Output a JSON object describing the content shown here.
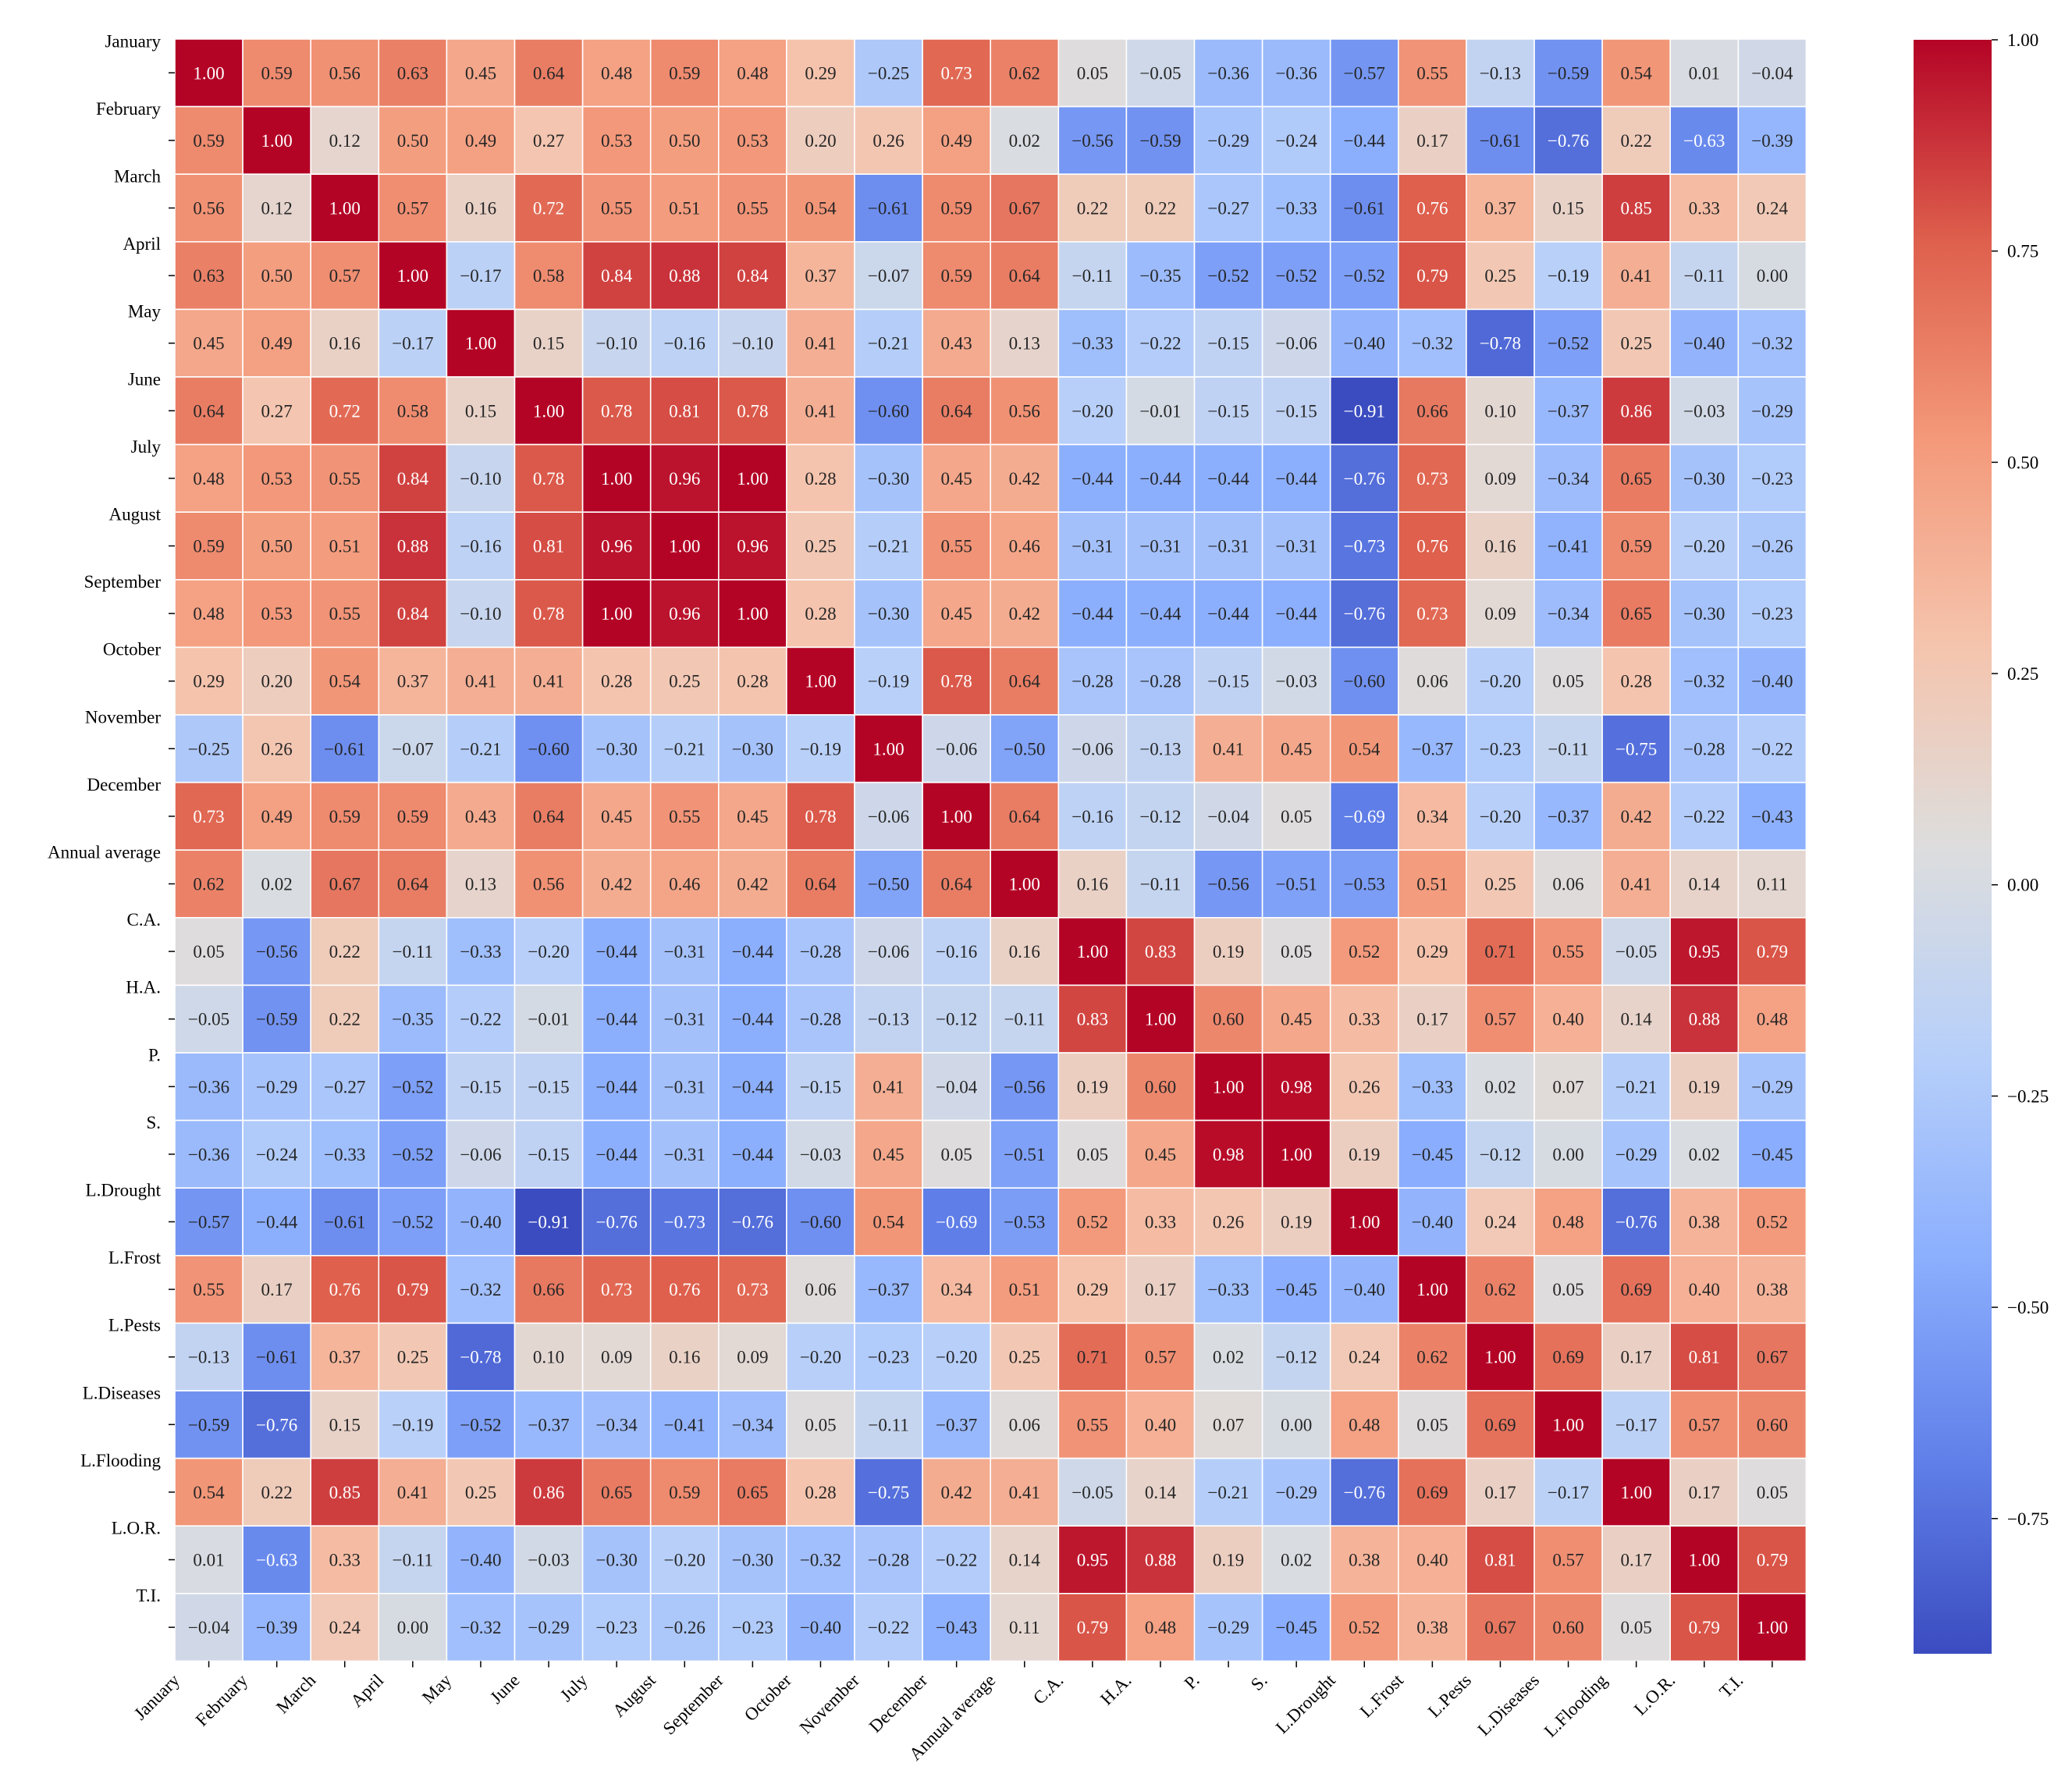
{
  "chart_data": {
    "type": "heatmap",
    "title": "",
    "xlabel": "",
    "ylabel": "",
    "colormap": "coolwarm",
    "vmin": -0.91,
    "vmax": 1.0,
    "value_format": "2 decimals",
    "labels": [
      "January",
      "February",
      "March",
      "April",
      "May",
      "June",
      "July",
      "August",
      "September",
      "October",
      "November",
      "December",
      "Annual average",
      "C.A.",
      "H.A.",
      "P.",
      "S.",
      "L.Drought",
      "L.Frost",
      "L.Pests",
      "L.Diseases",
      "L.Flooding",
      "L.O.R.",
      "T.I."
    ],
    "matrix": [
      [
        1.0,
        0.59,
        0.56,
        0.63,
        0.45,
        0.64,
        0.48,
        0.59,
        0.48,
        0.29,
        -0.25,
        0.73,
        0.62,
        0.05,
        -0.05,
        -0.36,
        -0.36,
        -0.57,
        0.55,
        -0.13,
        -0.59,
        0.54,
        0.01,
        -0.04
      ],
      [
        0.59,
        1.0,
        0.12,
        0.5,
        0.49,
        0.27,
        0.53,
        0.5,
        0.53,
        0.2,
        0.26,
        0.49,
        0.02,
        -0.56,
        -0.59,
        -0.29,
        -0.24,
        -0.44,
        0.17,
        -0.61,
        -0.76,
        0.22,
        -0.63,
        -0.39
      ],
      [
        0.56,
        0.12,
        1.0,
        0.57,
        0.16,
        0.72,
        0.55,
        0.51,
        0.55,
        0.54,
        -0.61,
        0.59,
        0.67,
        0.22,
        0.22,
        -0.27,
        -0.33,
        -0.61,
        0.76,
        0.37,
        0.15,
        0.85,
        0.33,
        0.24
      ],
      [
        0.63,
        0.5,
        0.57,
        1.0,
        -0.17,
        0.58,
        0.84,
        0.88,
        0.84,
        0.37,
        -0.07,
        0.59,
        0.64,
        -0.11,
        -0.35,
        -0.52,
        -0.52,
        -0.52,
        0.79,
        0.25,
        -0.19,
        0.41,
        -0.11,
        0.0
      ],
      [
        0.45,
        0.49,
        0.16,
        -0.17,
        1.0,
        0.15,
        -0.1,
        -0.16,
        -0.1,
        0.41,
        -0.21,
        0.43,
        0.13,
        -0.33,
        -0.22,
        -0.15,
        -0.06,
        -0.4,
        -0.32,
        -0.78,
        -0.52,
        0.25,
        -0.4,
        -0.32
      ],
      [
        0.64,
        0.27,
        0.72,
        0.58,
        0.15,
        1.0,
        0.78,
        0.81,
        0.78,
        0.41,
        -0.6,
        0.64,
        0.56,
        -0.2,
        -0.01,
        -0.15,
        -0.15,
        -0.91,
        0.66,
        0.1,
        -0.37,
        0.86,
        -0.03,
        -0.29
      ],
      [
        0.48,
        0.53,
        0.55,
        0.84,
        -0.1,
        0.78,
        1.0,
        0.96,
        1.0,
        0.28,
        -0.3,
        0.45,
        0.42,
        -0.44,
        -0.44,
        -0.44,
        -0.44,
        -0.76,
        0.73,
        0.09,
        -0.34,
        0.65,
        -0.3,
        -0.23
      ],
      [
        0.59,
        0.5,
        0.51,
        0.88,
        -0.16,
        0.81,
        0.96,
        1.0,
        0.96,
        0.25,
        -0.21,
        0.55,
        0.46,
        -0.31,
        -0.31,
        -0.31,
        -0.31,
        -0.73,
        0.76,
        0.16,
        -0.41,
        0.59,
        -0.2,
        -0.26
      ],
      [
        0.48,
        0.53,
        0.55,
        0.84,
        -0.1,
        0.78,
        1.0,
        0.96,
        1.0,
        0.28,
        -0.3,
        0.45,
        0.42,
        -0.44,
        -0.44,
        -0.44,
        -0.44,
        -0.76,
        0.73,
        0.09,
        -0.34,
        0.65,
        -0.3,
        -0.23
      ],
      [
        0.29,
        0.2,
        0.54,
        0.37,
        0.41,
        0.41,
        0.28,
        0.25,
        0.28,
        1.0,
        -0.19,
        0.78,
        0.64,
        -0.28,
        -0.28,
        -0.15,
        -0.03,
        -0.6,
        0.06,
        -0.2,
        0.05,
        0.28,
        -0.32,
        -0.4
      ],
      [
        -0.25,
        0.26,
        -0.61,
        -0.07,
        -0.21,
        -0.6,
        -0.3,
        -0.21,
        -0.3,
        -0.19,
        1.0,
        -0.06,
        -0.5,
        -0.06,
        -0.13,
        0.41,
        0.45,
        0.54,
        -0.37,
        -0.23,
        -0.11,
        -0.75,
        -0.28,
        -0.22
      ],
      [
        0.73,
        0.49,
        0.59,
        0.59,
        0.43,
        0.64,
        0.45,
        0.55,
        0.45,
        0.78,
        -0.06,
        1.0,
        0.64,
        -0.16,
        -0.12,
        -0.04,
        0.05,
        -0.69,
        0.34,
        -0.2,
        -0.37,
        0.42,
        -0.22,
        -0.43
      ],
      [
        0.62,
        0.02,
        0.67,
        0.64,
        0.13,
        0.56,
        0.42,
        0.46,
        0.42,
        0.64,
        -0.5,
        0.64,
        1.0,
        0.16,
        -0.11,
        -0.56,
        -0.51,
        -0.53,
        0.51,
        0.25,
        0.06,
        0.41,
        0.14,
        0.11
      ],
      [
        0.05,
        -0.56,
        0.22,
        -0.11,
        -0.33,
        -0.2,
        -0.44,
        -0.31,
        -0.44,
        -0.28,
        -0.06,
        -0.16,
        0.16,
        1.0,
        0.83,
        0.19,
        0.05,
        0.52,
        0.29,
        0.71,
        0.55,
        -0.05,
        0.95,
        0.79
      ],
      [
        -0.05,
        -0.59,
        0.22,
        -0.35,
        -0.22,
        -0.01,
        -0.44,
        -0.31,
        -0.44,
        -0.28,
        -0.13,
        -0.12,
        -0.11,
        0.83,
        1.0,
        0.6,
        0.45,
        0.33,
        0.17,
        0.57,
        0.4,
        0.14,
        0.88,
        0.48
      ],
      [
        -0.36,
        -0.29,
        -0.27,
        -0.52,
        -0.15,
        -0.15,
        -0.44,
        -0.31,
        -0.44,
        -0.15,
        0.41,
        -0.04,
        -0.56,
        0.19,
        0.6,
        1.0,
        0.98,
        0.26,
        -0.33,
        0.02,
        0.07,
        -0.21,
        0.19,
        -0.29
      ],
      [
        -0.36,
        -0.24,
        -0.33,
        -0.52,
        -0.06,
        -0.15,
        -0.44,
        -0.31,
        -0.44,
        -0.03,
        0.45,
        0.05,
        -0.51,
        0.05,
        0.45,
        0.98,
        1.0,
        0.19,
        -0.45,
        -0.12,
        0.0,
        -0.29,
        0.02,
        -0.45
      ],
      [
        -0.57,
        -0.44,
        -0.61,
        -0.52,
        -0.4,
        -0.91,
        -0.76,
        -0.73,
        -0.76,
        -0.6,
        0.54,
        -0.69,
        -0.53,
        0.52,
        0.33,
        0.26,
        0.19,
        1.0,
        -0.4,
        0.24,
        0.48,
        -0.76,
        0.38,
        0.52
      ],
      [
        0.55,
        0.17,
        0.76,
        0.79,
        -0.32,
        0.66,
        0.73,
        0.76,
        0.73,
        0.06,
        -0.37,
        0.34,
        0.51,
        0.29,
        0.17,
        -0.33,
        -0.45,
        -0.4,
        1.0,
        0.62,
        0.05,
        0.69,
        0.4,
        0.38
      ],
      [
        -0.13,
        -0.61,
        0.37,
        0.25,
        -0.78,
        0.1,
        0.09,
        0.16,
        0.09,
        -0.2,
        -0.23,
        -0.2,
        0.25,
        0.71,
        0.57,
        0.02,
        -0.12,
        0.24,
        0.62,
        1.0,
        0.69,
        0.17,
        0.81,
        0.67
      ],
      [
        -0.59,
        -0.76,
        0.15,
        -0.19,
        -0.52,
        -0.37,
        -0.34,
        -0.41,
        -0.34,
        0.05,
        -0.11,
        -0.37,
        0.06,
        0.55,
        0.4,
        0.07,
        0.0,
        0.48,
        0.05,
        0.69,
        1.0,
        -0.17,
        0.57,
        0.6
      ],
      [
        0.54,
        0.22,
        0.85,
        0.41,
        0.25,
        0.86,
        0.65,
        0.59,
        0.65,
        0.28,
        -0.75,
        0.42,
        0.41,
        -0.05,
        0.14,
        -0.21,
        -0.29,
        -0.76,
        0.69,
        0.17,
        -0.17,
        1.0,
        0.17,
        0.05
      ],
      [
        0.01,
        -0.63,
        0.33,
        -0.11,
        -0.4,
        -0.03,
        -0.3,
        -0.2,
        -0.3,
        -0.32,
        -0.28,
        -0.22,
        0.14,
        0.95,
        0.88,
        0.19,
        0.02,
        0.38,
        0.4,
        0.81,
        0.57,
        0.17,
        1.0,
        0.79
      ],
      [
        -0.04,
        -0.39,
        0.24,
        0.0,
        -0.32,
        -0.29,
        -0.23,
        -0.26,
        -0.23,
        -0.4,
        -0.22,
        -0.43,
        0.11,
        0.79,
        0.48,
        -0.29,
        -0.45,
        0.52,
        0.38,
        0.67,
        0.6,
        0.05,
        0.79,
        1.0
      ]
    ],
    "colorbar": {
      "ticks": [
        1.0,
        0.75,
        0.5,
        0.25,
        0.0,
        -0.25,
        -0.5,
        -0.75
      ],
      "tick_labels": [
        "1.00",
        "0.75",
        "0.50",
        "0.25",
        "0.00",
        "−0.25",
        "−0.50",
        "−0.75"
      ]
    }
  }
}
